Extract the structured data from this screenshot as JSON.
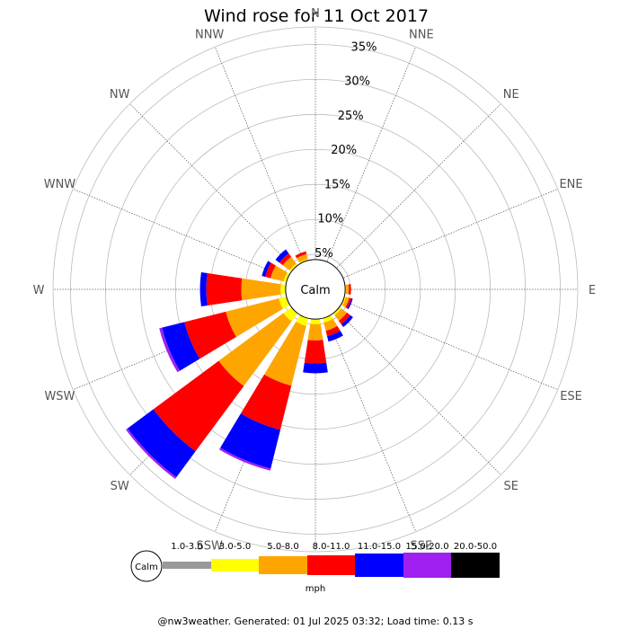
{
  "chart_data": {
    "type": "windrose",
    "title": "Wind rose for 11 Oct 2017",
    "directions": [
      "N",
      "NNE",
      "NE",
      "ENE",
      "E",
      "ESE",
      "SE",
      "SSE",
      "S",
      "SSW",
      "SW",
      "WSW",
      "W",
      "WNW",
      "NW",
      "NNW"
    ],
    "ring_labels": [
      "5%",
      "10%",
      "15%",
      "20%",
      "25%",
      "30%",
      "35%"
    ],
    "rings": [
      5,
      10,
      15,
      20,
      25,
      30,
      35
    ],
    "max_pct": 37.5,
    "calm_label": "Calm",
    "calm_pct": 4,
    "bins": [
      "1.0-3.0",
      "3.0-5.0",
      "5.0-8.0",
      "8.0-11.0",
      "11.0-15.0",
      "15.0-20.0",
      "20.0-50.0"
    ],
    "bin_colors": [
      "#999999",
      "#ffff00",
      "#ffa500",
      "#ff0000",
      "#0000ff",
      "#a020f0",
      "#000000"
    ],
    "units": "mph",
    "series": [
      {
        "dir": "N",
        "values": [
          0.1,
          0.2,
          0,
          0,
          0,
          0,
          0
        ]
      },
      {
        "dir": "NNE",
        "values": [
          0,
          0,
          0,
          0,
          0,
          0,
          0
        ]
      },
      {
        "dir": "NE",
        "values": [
          0,
          0,
          0,
          0,
          0,
          0,
          0
        ]
      },
      {
        "dir": "ENE",
        "values": [
          0,
          0,
          0,
          0,
          0,
          0,
          0
        ]
      },
      {
        "dir": "E",
        "values": [
          0.1,
          0.3,
          0.4,
          0.3,
          0,
          0,
          0
        ]
      },
      {
        "dir": "ESE",
        "values": [
          0.1,
          0.4,
          0.5,
          0.3,
          0.2,
          0,
          0
        ]
      },
      {
        "dir": "SE",
        "values": [
          0.1,
          0.5,
          1.0,
          0.6,
          0.5,
          0,
          0
        ]
      },
      {
        "dir": "SSE",
        "values": [
          0.1,
          0.8,
          1.2,
          0.8,
          0.8,
          0,
          0
        ]
      },
      {
        "dir": "S",
        "values": [
          0.1,
          0.9,
          2.3,
          3.3,
          1.4,
          0,
          0
        ]
      },
      {
        "dir": "SSW",
        "values": [
          0.2,
          1.2,
          8.8,
          6.5,
          5.7,
          0.3,
          0
        ]
      },
      {
        "dir": "SW",
        "values": [
          0.2,
          1.5,
          11.5,
          11.6,
          4.6,
          0.3,
          0
        ]
      },
      {
        "dir": "WSW",
        "values": [
          0.1,
          1.3,
          7.8,
          6.1,
          3.3,
          0.4,
          0
        ]
      },
      {
        "dir": "W",
        "values": [
          0.2,
          0.8,
          5.6,
          5.0,
          0.9,
          0,
          0
        ]
      },
      {
        "dir": "WNW",
        "values": [
          0.1,
          0.6,
          1.9,
          0.8,
          0.5,
          0,
          0
        ]
      },
      {
        "dir": "NW",
        "values": [
          0.1,
          0.5,
          1.2,
          0.6,
          0.7,
          0,
          0
        ]
      },
      {
        "dir": "NNW",
        "values": [
          0.1,
          0.4,
          0.7,
          0.4,
          0,
          0,
          0
        ]
      }
    ]
  },
  "footer": "@nw3weather. Generated: 01 Jul 2025 03:32; Load time: 0.13 s"
}
